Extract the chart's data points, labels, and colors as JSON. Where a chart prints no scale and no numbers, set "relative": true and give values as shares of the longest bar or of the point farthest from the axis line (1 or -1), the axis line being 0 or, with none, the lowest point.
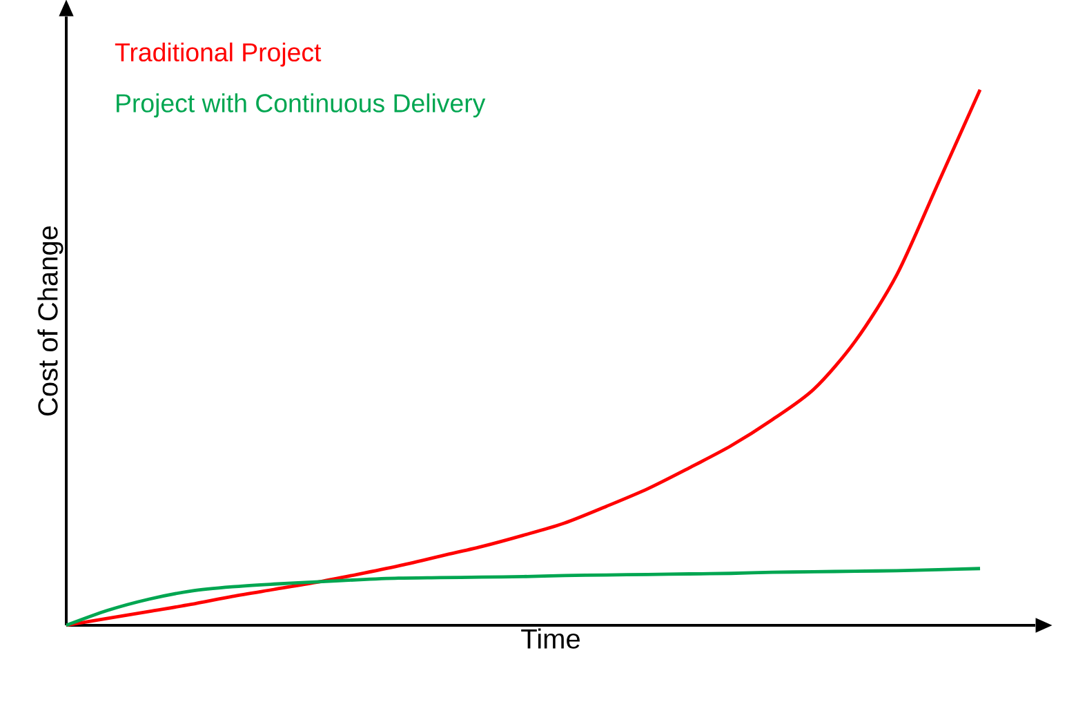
{
  "chart_data": {
    "type": "line",
    "relative": true,
    "xlabel": "Time",
    "ylabel": "Cost of Change",
    "legend": "top left",
    "categories": [
      null,
      null,
      null,
      null,
      null,
      null,
      null,
      null,
      null,
      null,
      null,
      null,
      null,
      null,
      null,
      null,
      null,
      null,
      null,
      null,
      null,
      null,
      null
    ],
    "series": [
      {
        "name": "Traditional Project",
        "color": "#ff0000",
        "values": [
          0,
          0.013,
          0.026,
          0.039,
          0.054,
          0.067,
          0.08,
          0.095,
          0.111,
          0.129,
          0.147,
          0.168,
          0.191,
          0.222,
          0.255,
          0.294,
          0.335,
          0.384,
          0.441,
          0.531,
          0.655,
          0.827,
          1
        ]
      },
      {
        "name": "Project with Continuous Delivery",
        "color": "#00a651",
        "values": [
          0,
          0.028,
          0.049,
          0.064,
          0.072,
          0.077,
          0.081,
          0.085,
          0.088,
          0.089,
          0.09,
          0.091,
          0.093,
          0.094,
          0.095,
          0.096,
          0.097,
          0.099,
          0.1,
          0.101,
          0.102,
          0.104,
          0.106
        ]
      }
    ]
  }
}
